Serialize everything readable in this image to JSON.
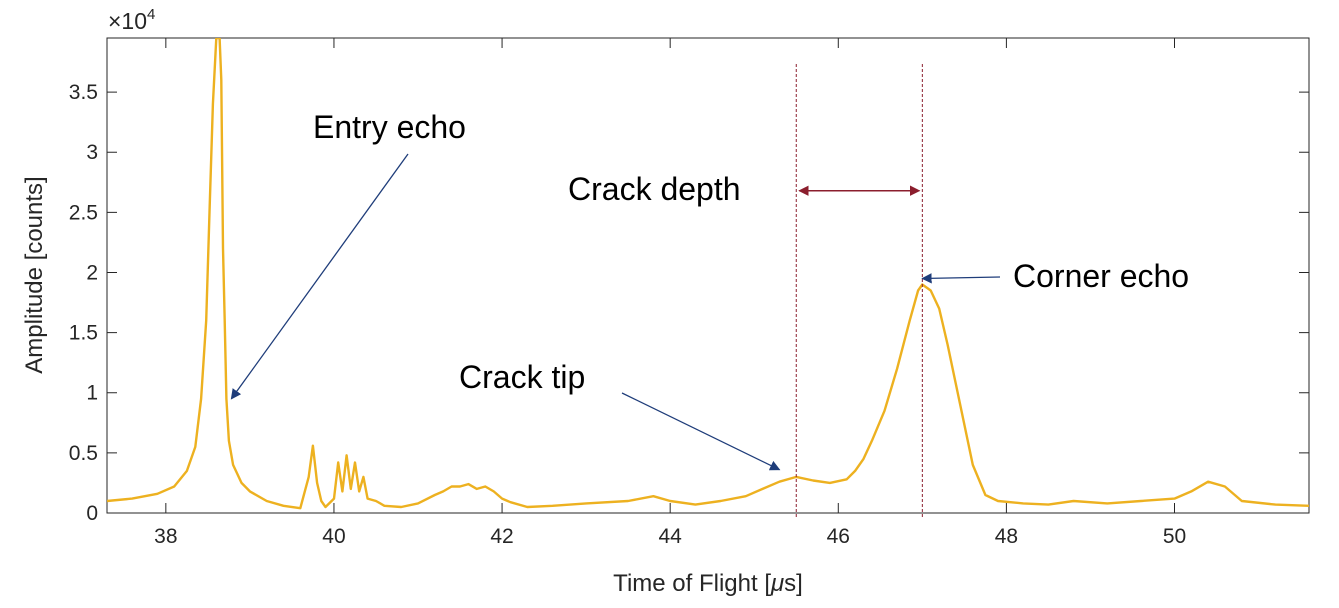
{
  "chart_data": {
    "type": "line",
    "xlabel": "Time of Flight [",
    "xlabel_unit": "μ",
    "xlabel_tail": "s]",
    "ylabel": "Amplitude [counts]",
    "exponent_label": "×10",
    "exponent_power": "4",
    "xlim": [
      37.3,
      51.6
    ],
    "ylim": [
      0,
      3.95
    ],
    "y_scale_factor": 10000,
    "xticks": [
      38,
      40,
      42,
      44,
      46,
      48,
      50
    ],
    "yticks": [
      0,
      0.5,
      1,
      1.5,
      2,
      2.5,
      3,
      3.5
    ],
    "ytick_labels": [
      "0",
      "0.5",
      "1",
      "1.5",
      "2",
      "2.5",
      "3",
      "3.5"
    ],
    "grid": false,
    "series": [
      {
        "color": "#EDB120",
        "x": [
          37.3,
          37.6,
          37.9,
          38.1,
          38.25,
          38.35,
          38.42,
          38.48,
          38.52,
          38.56,
          38.6,
          38.62,
          38.64,
          38.66,
          38.68,
          38.7,
          38.72,
          38.75,
          38.8,
          38.9,
          39.0,
          39.2,
          39.4,
          39.6,
          39.7,
          39.75,
          39.8,
          39.85,
          39.9,
          40.0,
          40.05,
          40.1,
          40.15,
          40.2,
          40.25,
          40.3,
          40.35,
          40.4,
          40.5,
          40.6,
          40.8,
          41.0,
          41.2,
          41.3,
          41.4,
          41.5,
          41.6,
          41.7,
          41.8,
          41.9,
          42.0,
          42.1,
          42.3,
          42.6,
          43.0,
          43.5,
          43.8,
          44.0,
          44.3,
          44.6,
          44.9,
          45.1,
          45.3,
          45.5,
          45.7,
          45.9,
          46.1,
          46.2,
          46.3,
          46.4,
          46.55,
          46.7,
          46.85,
          46.95,
          47.0,
          47.1,
          47.2,
          47.3,
          47.45,
          47.6,
          47.75,
          47.9,
          48.2,
          48.5,
          48.8,
          49.2,
          49.6,
          50.0,
          50.2,
          50.4,
          50.6,
          50.8,
          51.2,
          51.6
        ],
        "y": [
          0.1,
          0.12,
          0.16,
          0.22,
          0.35,
          0.55,
          0.95,
          1.6,
          2.5,
          3.4,
          3.95,
          3.95,
          3.95,
          3.6,
          2.2,
          1.6,
          0.95,
          0.6,
          0.4,
          0.25,
          0.18,
          0.1,
          0.06,
          0.04,
          0.3,
          0.56,
          0.25,
          0.1,
          0.05,
          0.12,
          0.42,
          0.18,
          0.48,
          0.2,
          0.42,
          0.18,
          0.3,
          0.12,
          0.1,
          0.06,
          0.05,
          0.08,
          0.15,
          0.18,
          0.22,
          0.22,
          0.24,
          0.2,
          0.22,
          0.18,
          0.12,
          0.09,
          0.05,
          0.06,
          0.08,
          0.1,
          0.14,
          0.1,
          0.07,
          0.1,
          0.14,
          0.2,
          0.26,
          0.3,
          0.27,
          0.25,
          0.28,
          0.35,
          0.45,
          0.6,
          0.85,
          1.2,
          1.6,
          1.85,
          1.9,
          1.85,
          1.7,
          1.4,
          0.9,
          0.4,
          0.15,
          0.1,
          0.08,
          0.07,
          0.1,
          0.08,
          0.1,
          0.12,
          0.18,
          0.26,
          0.22,
          0.1,
          0.07,
          0.06
        ]
      }
    ],
    "vlines": [
      45.5,
      47.0
    ],
    "annotations": [
      {
        "text": "Entry echo",
        "arrow_to": [
          38.78,
          0.95
        ]
      },
      {
        "text": "Crack depth",
        "arrow_from": 45.5,
        "arrow_to": 47.0,
        "y": 2.68
      },
      {
        "text": "Corner echo",
        "arrow_to": [
          47.0,
          1.95
        ]
      },
      {
        "text": "Crack tip",
        "arrow_to": [
          45.3,
          0.36
        ]
      }
    ]
  }
}
